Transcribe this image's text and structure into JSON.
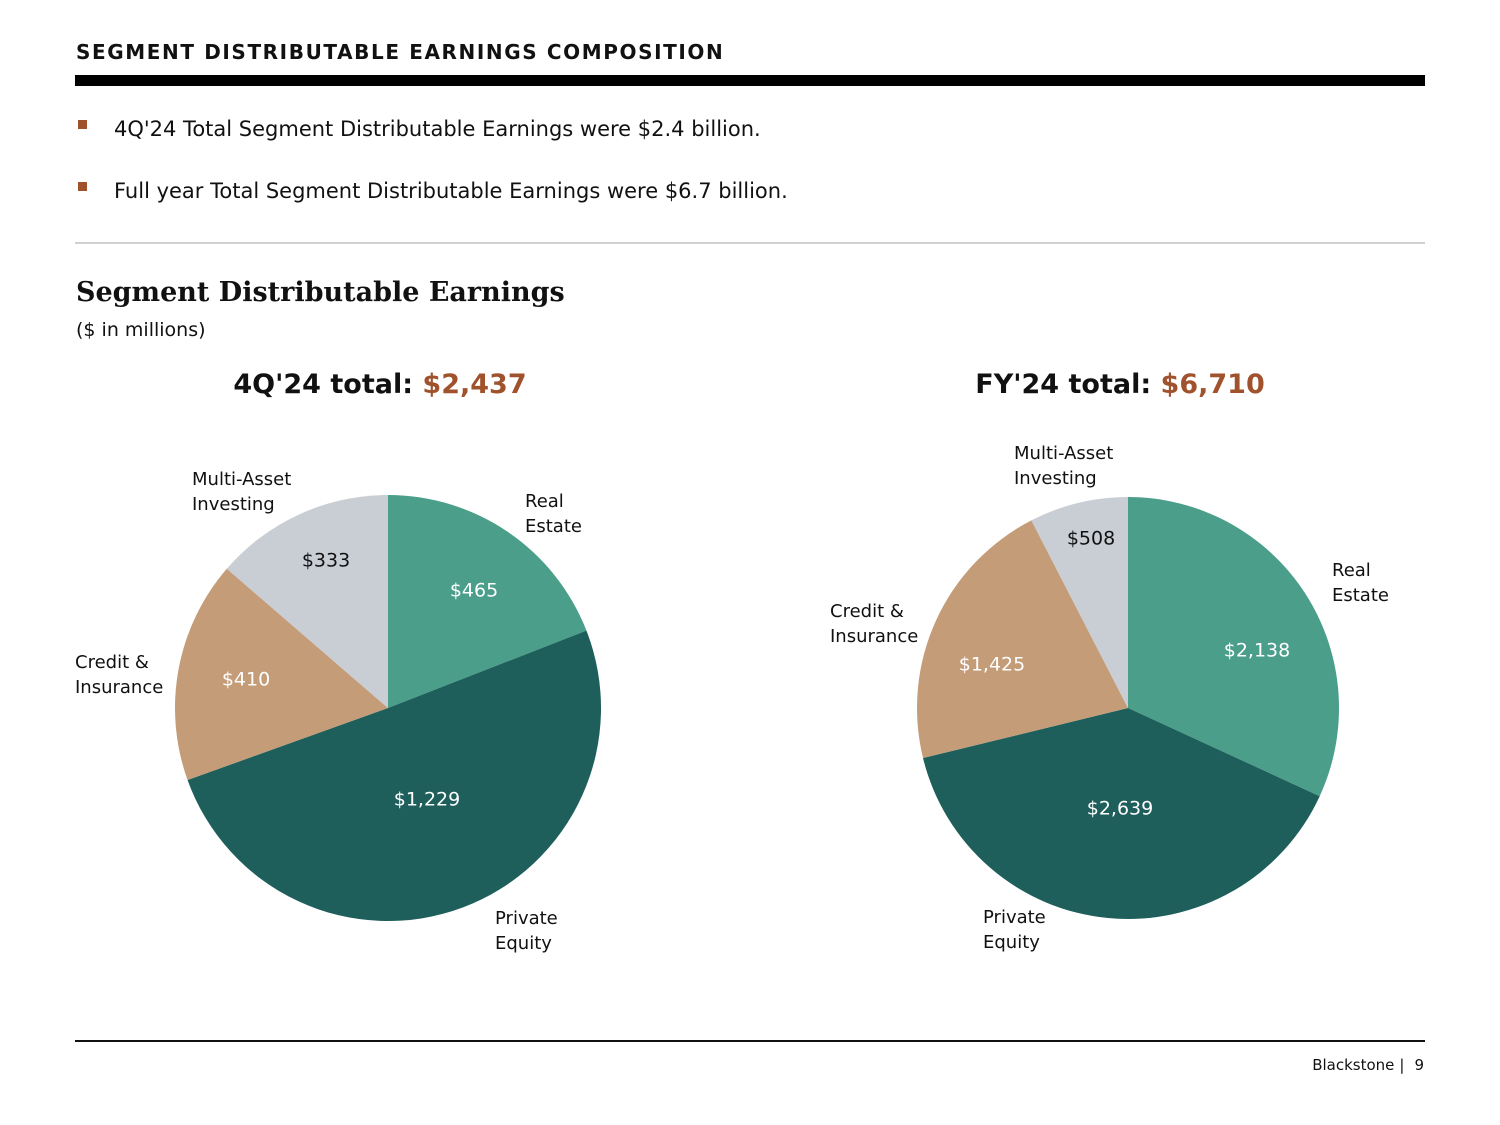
{
  "header": {
    "title": "SEGMENT DISTRIBUTABLE EARNINGS COMPOSITION"
  },
  "bullets": [
    "4Q'24 Total Segment Distributable Earnings were $2.4 billion.",
    "Full year Total Segment Distributable Earnings were $6.7 billion."
  ],
  "section": {
    "title": "Segment Distributable Earnings",
    "subtitle": "($ in millions)"
  },
  "colors": {
    "accent": "#a0522d",
    "real_estate": "#4b9e8a",
    "private_equity": "#1e5f5c",
    "credit_insurance": "#c49c78",
    "multi_asset": "#c9cdd4"
  },
  "chart_data": [
    {
      "type": "pie",
      "title_label": "4Q'24 total:",
      "title_value": "$2,437",
      "slices": [
        {
          "name": "Real Estate",
          "value": 465,
          "value_label": "$465"
        },
        {
          "name": "Private Equity",
          "value": 1229,
          "value_label": "$1,229"
        },
        {
          "name": "Credit & Insurance",
          "value": 410,
          "value_label": "$410"
        },
        {
          "name": "Multi-Asset Investing",
          "value": 333,
          "value_label": "$333"
        }
      ]
    },
    {
      "type": "pie",
      "title_label": "FY'24 total:",
      "title_value": "$6,710",
      "slices": [
        {
          "name": "Real Estate",
          "value": 2138,
          "value_label": "$2,138"
        },
        {
          "name": "Private Equity",
          "value": 2639,
          "value_label": "$2,639"
        },
        {
          "name": "Credit & Insurance",
          "value": 1425,
          "value_label": "$1,425"
        },
        {
          "name": "Multi-Asset Investing",
          "value": 508,
          "value_label": "$508"
        }
      ]
    }
  ],
  "footer": {
    "brand": "Blackstone",
    "separator": "|",
    "page_number": "9"
  }
}
